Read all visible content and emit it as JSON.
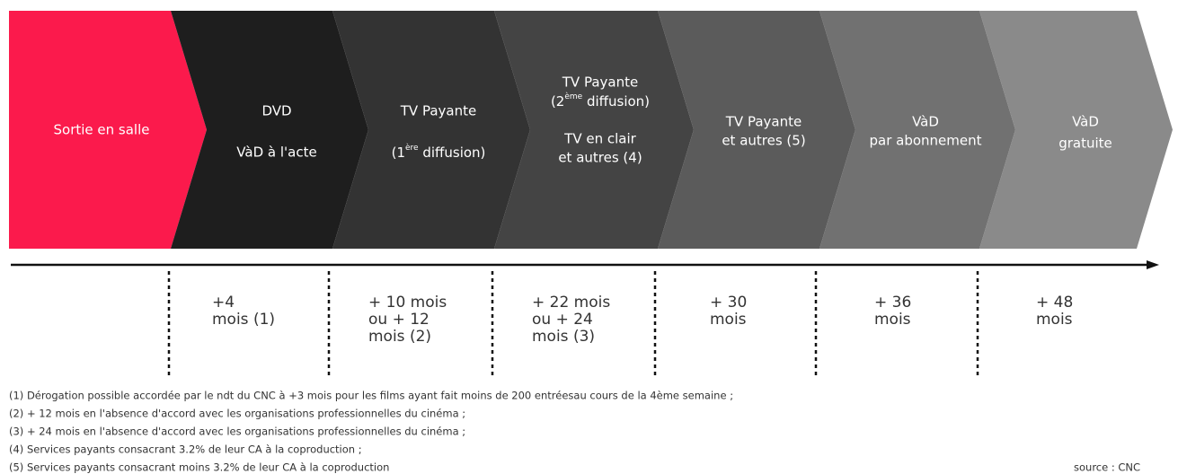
{
  "stages": [
    {
      "lines": [
        "Sortie en salle"
      ]
    },
    {
      "lines": [
        "DVD",
        "VàD à l'acte"
      ]
    },
    {
      "lines": [
        "TV Payante",
        {
          "before": "(1",
          "sup": "ère",
          "after": " diffusion)"
        }
      ]
    },
    {
      "lines": [
        "TV Payante",
        {
          "before": "(2",
          "sup": "ème",
          "after": " diffusion)"
        },
        "TV en clair",
        "et autres (4)"
      ]
    },
    {
      "lines": [
        "TV Payante",
        "et autres (5)"
      ]
    },
    {
      "lines": [
        "VàD",
        "par abonnement"
      ]
    },
    {
      "lines": [
        "VàD",
        "gratuite"
      ]
    }
  ],
  "delays": [
    {
      "lines": [
        "+4",
        "mois (1)"
      ]
    },
    {
      "lines": [
        "+ 10 mois",
        "ou + 12",
        "mois (2)"
      ]
    },
    {
      "lines": [
        "+ 22 mois",
        "ou + 24",
        "mois (3)"
      ]
    },
    {
      "lines": [
        "+ 30",
        "mois"
      ]
    },
    {
      "lines": [
        "+ 36",
        "mois"
      ]
    },
    {
      "lines": [
        "+ 48",
        "mois"
      ]
    }
  ],
  "footnotes": [
    "(1) Dérogation possible accordée par le ndt du CNC à +3 mois pour les films ayant fait moins de 200 entréesau cours de la 4ème semaine ;",
    "(2) + 12 mois en l'absence d'accord avec les organisations professionnelles du cinéma ;",
    "(3) + 24 mois en l'absence d'accord avec les organisations professionnelles du cinéma ;",
    "(4) Services payants consacrant 3.2% de leur CA à la coproduction ;",
    "(5) Services payants consacrant moins 3.2% de leur CA à la coproduction"
  ],
  "source": "source : CNC"
}
